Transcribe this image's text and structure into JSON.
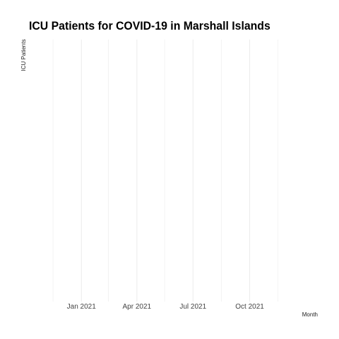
{
  "chart_data": {
    "type": "line",
    "title": "ICU Patients for COVID-19 in Marshall Islands",
    "xlabel": "Month",
    "ylabel": "ICU Patients",
    "x_type": "date",
    "xlim": [
      "2020-11-01",
      "2021-12-31"
    ],
    "x_ticks": [
      {
        "date": "2021-01-01",
        "label": "Jan 2021"
      },
      {
        "date": "2021-04-01",
        "label": "Apr 2021"
      },
      {
        "date": "2021-07-01",
        "label": "Jul 2021"
      },
      {
        "date": "2021-10-01",
        "label": "Oct 2021"
      }
    ],
    "x_minor_ticks": [
      "2020-11-16",
      "2021-02-14",
      "2021-05-16",
      "2021-08-16",
      "2021-11-16"
    ],
    "series": [],
    "grid": "vertical",
    "grid_color": "#ebebeb",
    "legend": "none"
  }
}
